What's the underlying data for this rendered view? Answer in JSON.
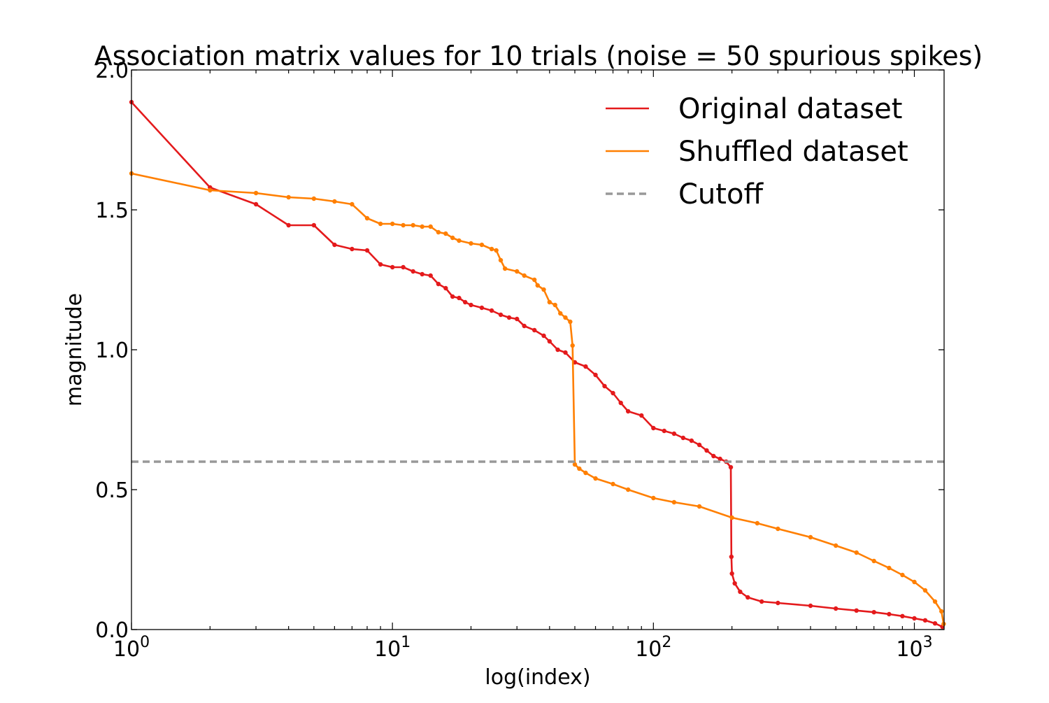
{
  "chart_data": {
    "type": "line",
    "title": "Association matrix values for 10 trials (noise = 50 spurious spikes)",
    "xlabel": "log(index)",
    "ylabel": "magnitude",
    "xscale": "log",
    "xlim": [
      1,
      1300
    ],
    "ylim": [
      0,
      2.0
    ],
    "grid": false,
    "legend_position": "top-right",
    "x_ticks": [
      {
        "value": 1,
        "base": "10",
        "exp": "0"
      },
      {
        "value": 10,
        "base": "10",
        "exp": "1"
      },
      {
        "value": 100,
        "base": "10",
        "exp": "2"
      },
      {
        "value": 1000,
        "base": "10",
        "exp": "3"
      }
    ],
    "y_ticks": [
      {
        "value": 0,
        "label": "0.0"
      },
      {
        "value": 0.5,
        "label": "0.5"
      },
      {
        "value": 1.0,
        "label": "1.0"
      },
      {
        "value": 1.5,
        "label": "1.5"
      },
      {
        "value": 2.0,
        "label": "2.0"
      }
    ],
    "series": [
      {
        "name": "Original dataset",
        "color": "#e41a1c",
        "marker": "dot",
        "style": "solid",
        "points": [
          [
            1,
            1.885
          ],
          [
            2,
            1.58
          ],
          [
            3,
            1.52
          ],
          [
            4,
            1.445
          ],
          [
            5,
            1.445
          ],
          [
            6,
            1.375
          ],
          [
            7,
            1.36
          ],
          [
            8,
            1.355
          ],
          [
            9,
            1.305
          ],
          [
            10,
            1.295
          ],
          [
            11,
            1.295
          ],
          [
            12,
            1.28
          ],
          [
            13,
            1.27
          ],
          [
            14,
            1.265
          ],
          [
            15,
            1.235
          ],
          [
            16,
            1.22
          ],
          [
            17,
            1.19
          ],
          [
            18,
            1.185
          ],
          [
            19,
            1.17
          ],
          [
            20,
            1.16
          ],
          [
            22,
            1.15
          ],
          [
            24,
            1.14
          ],
          [
            26,
            1.125
          ],
          [
            28,
            1.115
          ],
          [
            30,
            1.11
          ],
          [
            32,
            1.085
          ],
          [
            35,
            1.07
          ],
          [
            38,
            1.05
          ],
          [
            40,
            1.03
          ],
          [
            43,
            1.0
          ],
          [
            46,
            0.99
          ],
          [
            50,
            0.955
          ],
          [
            55,
            0.94
          ],
          [
            60,
            0.91
          ],
          [
            65,
            0.87
          ],
          [
            70,
            0.845
          ],
          [
            75,
            0.81
          ],
          [
            80,
            0.78
          ],
          [
            90,
            0.765
          ],
          [
            100,
            0.72
          ],
          [
            110,
            0.71
          ],
          [
            120,
            0.7
          ],
          [
            130,
            0.685
          ],
          [
            140,
            0.675
          ],
          [
            150,
            0.66
          ],
          [
            160,
            0.64
          ],
          [
            170,
            0.62
          ],
          [
            180,
            0.61
          ],
          [
            190,
            0.6
          ],
          [
            198,
            0.58
          ],
          [
            199,
            0.26
          ],
          [
            200,
            0.2
          ],
          [
            205,
            0.165
          ],
          [
            215,
            0.135
          ],
          [
            230,
            0.115
          ],
          [
            260,
            0.1
          ],
          [
            300,
            0.095
          ],
          [
            400,
            0.085
          ],
          [
            500,
            0.075
          ],
          [
            600,
            0.068
          ],
          [
            700,
            0.062
          ],
          [
            800,
            0.055
          ],
          [
            900,
            0.048
          ],
          [
            1000,
            0.04
          ],
          [
            1100,
            0.033
          ],
          [
            1200,
            0.022
          ],
          [
            1280,
            0.01
          ]
        ]
      },
      {
        "name": "Shuffled dataset",
        "color": "#ff7f00",
        "marker": "dot",
        "style": "solid",
        "points": [
          [
            1,
            1.63
          ],
          [
            2,
            1.57
          ],
          [
            3,
            1.56
          ],
          [
            4,
            1.545
          ],
          [
            5,
            1.54
          ],
          [
            6,
            1.53
          ],
          [
            7,
            1.52
          ],
          [
            8,
            1.47
          ],
          [
            9,
            1.45
          ],
          [
            10,
            1.45
          ],
          [
            11,
            1.445
          ],
          [
            12,
            1.445
          ],
          [
            13,
            1.44
          ],
          [
            14,
            1.44
          ],
          [
            15,
            1.42
          ],
          [
            16,
            1.415
          ],
          [
            17,
            1.4
          ],
          [
            18,
            1.39
          ],
          [
            20,
            1.38
          ],
          [
            22,
            1.375
          ],
          [
            24,
            1.36
          ],
          [
            25,
            1.355
          ],
          [
            26,
            1.32
          ],
          [
            27,
            1.29
          ],
          [
            30,
            1.28
          ],
          [
            32,
            1.265
          ],
          [
            35,
            1.25
          ],
          [
            36,
            1.23
          ],
          [
            38,
            1.215
          ],
          [
            40,
            1.17
          ],
          [
            42,
            1.16
          ],
          [
            44,
            1.13
          ],
          [
            46,
            1.115
          ],
          [
            48,
            1.1
          ],
          [
            49,
            1.015
          ],
          [
            50,
            0.59
          ],
          [
            52,
            0.575
          ],
          [
            55,
            0.56
          ],
          [
            60,
            0.54
          ],
          [
            70,
            0.52
          ],
          [
            80,
            0.5
          ],
          [
            100,
            0.47
          ],
          [
            120,
            0.455
          ],
          [
            150,
            0.44
          ],
          [
            200,
            0.4
          ],
          [
            250,
            0.38
          ],
          [
            300,
            0.36
          ],
          [
            400,
            0.33
          ],
          [
            500,
            0.3
          ],
          [
            600,
            0.275
          ],
          [
            700,
            0.245
          ],
          [
            800,
            0.22
          ],
          [
            900,
            0.195
          ],
          [
            1000,
            0.17
          ],
          [
            1100,
            0.14
          ],
          [
            1200,
            0.1
          ],
          [
            1270,
            0.065
          ],
          [
            1295,
            0.02
          ]
        ]
      },
      {
        "name": "Cutoff",
        "color": "#999999",
        "marker": "none",
        "style": "dashed",
        "points": [
          [
            1,
            0.6
          ],
          [
            1300,
            0.6
          ]
        ]
      }
    ]
  }
}
